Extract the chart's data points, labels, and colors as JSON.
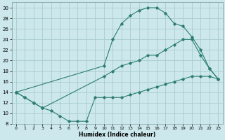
{
  "xlabel": "Humidex (Indice chaleur)",
  "bg_color": "#cce8ec",
  "grid_color": "#aacccc",
  "line_color": "#2e7d72",
  "xlim": [
    -0.5,
    23.5
  ],
  "ylim": [
    8,
    31
  ],
  "xticks": [
    0,
    1,
    2,
    3,
    4,
    5,
    6,
    7,
    8,
    9,
    10,
    11,
    12,
    13,
    14,
    15,
    16,
    17,
    18,
    19,
    20,
    21,
    22,
    23
  ],
  "yticks": [
    8,
    10,
    12,
    14,
    16,
    18,
    20,
    22,
    24,
    26,
    28,
    30
  ],
  "line1_x": [
    0,
    1,
    2,
    3,
    4,
    5,
    6,
    7,
    8,
    9,
    10,
    11,
    12,
    13,
    14,
    15,
    16,
    17,
    18,
    19,
    20,
    21,
    22,
    23
  ],
  "line1_y": [
    14,
    13,
    12,
    11,
    10.5,
    9.5,
    8.5,
    8.5,
    8.5,
    13,
    13,
    13,
    13,
    13.5,
    14,
    14.5,
    15,
    15.5,
    16,
    16.5,
    17,
    17,
    17,
    16.5
  ],
  "line2_x": [
    0,
    1,
    2,
    3,
    10,
    11,
    12,
    13,
    14,
    15,
    16,
    17,
    18,
    19,
    20,
    21,
    22,
    23
  ],
  "line2_y": [
    14,
    13,
    12,
    11,
    17,
    18,
    19,
    19.5,
    20,
    21,
    21,
    22,
    23,
    24,
    24,
    21,
    18.5,
    16.5
  ],
  "line3_x": [
    0,
    10,
    11,
    12,
    13,
    14,
    15,
    16,
    17,
    18,
    19,
    20,
    21,
    22,
    23
  ],
  "line3_y": [
    14,
    19,
    24,
    27,
    28.5,
    29.5,
    30,
    30,
    29,
    27,
    26.5,
    24.5,
    22,
    18.5,
    16.5
  ]
}
